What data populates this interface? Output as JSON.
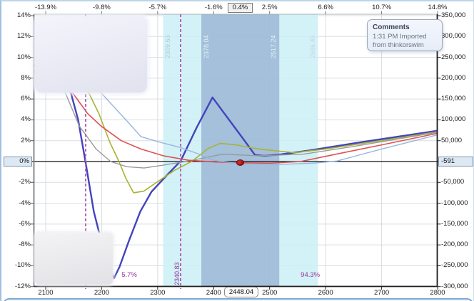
{
  "comments_box": {
    "title": "Comments",
    "body": "1:31 PM Imported from thinkorswim"
  },
  "badges": {
    "top_percent": "0.4%",
    "left_zero": "0%",
    "right_pl": "-591",
    "bottom_price": "2448.04"
  },
  "chart_data": {
    "type": "line",
    "title": "Risk profile P/L vs underlying price",
    "grid": true,
    "x_axis_bottom": {
      "labels": [
        "2100",
        "2200",
        "2300",
        "2400",
        "2500",
        "2600",
        "2700",
        "2800"
      ],
      "values": [
        2100,
        2200,
        2300,
        2400,
        2500,
        2600,
        2700,
        2800
      ],
      "range": [
        2100,
        2800
      ],
      "current_price_label": "2448.04",
      "current_price": 2448.04
    },
    "x_axis_top": {
      "labels": [
        {
          "text": "-13.9%",
          "price": 2100
        },
        {
          "text": "-9.8%",
          "price": 2200
        },
        {
          "text": "-5.7%",
          "price": 2300
        },
        {
          "text": "-1.6%",
          "price": 2400
        },
        {
          "text": "2.5%",
          "price": 2500
        },
        {
          "text": "6.6%",
          "price": 2600
        },
        {
          "text": "10.7%",
          "price": 2700
        },
        {
          "text": "14.8%",
          "price": 2800
        }
      ],
      "boxed_label": {
        "text": "0.4%",
        "price": 2448.04
      }
    },
    "y_axis_left": {
      "unit": "%",
      "labels": [
        "14%",
        "12%",
        "10%",
        "8%",
        "6%",
        "4%",
        "2%",
        "-2%",
        "-4%",
        "-6%",
        "-8%",
        "-10%",
        "-12%"
      ],
      "values": [
        14,
        12,
        10,
        8,
        6,
        4,
        2,
        -2,
        -4,
        -6,
        -8,
        -10,
        -12
      ],
      "range": [
        -12,
        14
      ],
      "highlighted_label": "0%",
      "highlighted_value": 0
    },
    "y_axis_right": {
      "labels": [
        "350,000",
        "300,000",
        "250,000",
        "200,000",
        "150,000",
        "100,000",
        "50,000",
        "-50,000",
        "-100,000",
        "-150,000",
        "-200,000",
        "-250,000",
        "-300,000"
      ],
      "values": [
        350000,
        300000,
        250000,
        200000,
        150000,
        100000,
        50000,
        -50000,
        -100000,
        -150000,
        -200000,
        -250000,
        -300000
      ],
      "range": [
        -300000,
        350000
      ],
      "highlighted_label": "-591",
      "highlighted_value": -591
    },
    "bands": [
      {
        "from": 2309.63,
        "to": 2586.45,
        "color": "rgba(203,240,246,0.85)"
      },
      {
        "from": 2378.04,
        "to": 2517.24,
        "color": "rgba(146,172,207,0.72)"
      }
    ],
    "band_edge_labels": [
      {
        "text": "2309.63",
        "price": 2309.63,
        "side": "right",
        "color": "#b2c9d3"
      },
      {
        "text": "2378.04",
        "price": 2378.04,
        "side": "right",
        "color": "#e7f1f6"
      },
      {
        "text": "2517.24",
        "price": 2517.24,
        "side": "left",
        "color": "#e7f1f6"
      },
      {
        "text": "2586.45",
        "price": 2586.45,
        "side": "left",
        "color": "#c2d7e5"
      }
    ],
    "breakeven_lines": [
      {
        "price": 2171.0,
        "label": ""
      },
      {
        "price": 2340.83,
        "label": "2340.83"
      }
    ],
    "probability_labels": [
      {
        "text": "5.7%",
        "price": 2252
      },
      {
        "text": "94.3%",
        "price": 2572
      }
    ],
    "marker": {
      "price": 2448.04,
      "pct": -0.1,
      "color": "#a51717"
    },
    "series": [
      {
        "name": "expiration-line",
        "color": "#4343bd",
        "width": 2.4,
        "points": [
          [
            2081,
            9.2
          ],
          [
            2110,
            7.9
          ],
          [
            2145,
            6.6
          ],
          [
            2158,
            4.0
          ],
          [
            2171,
            0
          ],
          [
            2186,
            -4.8
          ],
          [
            2202,
            -8.2
          ],
          [
            2213,
            -10.0
          ],
          [
            2222,
            -11.2
          ],
          [
            2232,
            -10.1
          ],
          [
            2248,
            -7.7
          ],
          [
            2269,
            -4.8
          ],
          [
            2289,
            -2.9
          ],
          [
            2315,
            -1.4
          ],
          [
            2341,
            0.05
          ],
          [
            2370,
            3.3
          ],
          [
            2398,
            6.15
          ],
          [
            2420,
            4.55
          ],
          [
            2440,
            3.1
          ],
          [
            2460,
            1.65
          ],
          [
            2474,
            0.62
          ],
          [
            2490,
            0.55
          ],
          [
            2520,
            0.68
          ],
          [
            2570,
            1.05
          ],
          [
            2650,
            1.75
          ],
          [
            2799,
            2.95
          ]
        ]
      },
      {
        "name": "date-line-1",
        "color": "#a9b32f",
        "width": 1.6,
        "points": [
          [
            2081,
            8.6
          ],
          [
            2130,
            7.5
          ],
          [
            2177,
            6.6
          ],
          [
            2195,
            4.6
          ],
          [
            2215,
            1.8
          ],
          [
            2231,
            0
          ],
          [
            2243,
            -1.6
          ],
          [
            2257,
            -3.0
          ],
          [
            2275,
            -2.85
          ],
          [
            2301,
            -1.9
          ],
          [
            2330,
            -0.85
          ],
          [
            2362,
            0.05
          ],
          [
            2390,
            1.25
          ],
          [
            2412,
            1.75
          ],
          [
            2440,
            1.6
          ],
          [
            2480,
            1.2
          ],
          [
            2544,
            0.85
          ],
          [
            2600,
            1.2
          ],
          [
            2700,
            2.0
          ],
          [
            2799,
            2.85
          ]
        ]
      },
      {
        "name": "date-line-2",
        "color": "#9a9a9a",
        "width": 1.4,
        "points": [
          [
            2081,
            8.4
          ],
          [
            2100,
            7.8
          ],
          [
            2135,
            6.6
          ],
          [
            2160,
            3.4
          ],
          [
            2190,
            1.2
          ],
          [
            2216,
            0
          ],
          [
            2245,
            -0.5
          ],
          [
            2276,
            -0.62
          ],
          [
            2310,
            -0.35
          ],
          [
            2355,
            0.05
          ],
          [
            2416,
            0.7
          ],
          [
            2480,
            0.55
          ],
          [
            2560,
            0.7
          ],
          [
            2650,
            1.45
          ],
          [
            2799,
            2.8
          ]
        ]
      },
      {
        "name": "date-line-3",
        "color": "#e05050",
        "width": 1.6,
        "points": [
          [
            2081,
            8.7
          ],
          [
            2120,
            7.4
          ],
          [
            2148,
            6.6
          ],
          [
            2175,
            4.6
          ],
          [
            2199,
            3.4
          ],
          [
            2235,
            2.0
          ],
          [
            2270,
            1.2
          ],
          [
            2310,
            0.55
          ],
          [
            2355,
            0.12
          ],
          [
            2404,
            -0.05
          ],
          [
            2448,
            -0.12
          ],
          [
            2500,
            -0.16
          ],
          [
            2555,
            0.0
          ],
          [
            2600,
            0.5
          ],
          [
            2700,
            1.6
          ],
          [
            2799,
            2.7
          ]
        ]
      },
      {
        "name": "date-line-4",
        "color": "#96b6e0",
        "width": 1.4,
        "points": [
          [
            2081,
            10.0
          ],
          [
            2150,
            8.0
          ],
          [
            2199,
            6.6
          ],
          [
            2221,
            5.3
          ],
          [
            2245,
            3.9
          ],
          [
            2270,
            2.4
          ],
          [
            2301,
            1.9
          ],
          [
            2340,
            1.35
          ],
          [
            2372,
            0.75
          ],
          [
            2401,
            0.1
          ],
          [
            2448,
            -0.22
          ],
          [
            2520,
            -0.28
          ],
          [
            2580,
            -0.15
          ],
          [
            2620,
            0.05
          ],
          [
            2700,
            1.2
          ],
          [
            2799,
            2.55
          ]
        ]
      }
    ],
    "colors": {
      "grid": "#d9dde0",
      "zero_line": "#111111",
      "dashed_line": "#b468b4",
      "probability_text": "#993399",
      "band_cyan": "#d6f4f7",
      "band_blue": "#b2c5dd"
    }
  }
}
